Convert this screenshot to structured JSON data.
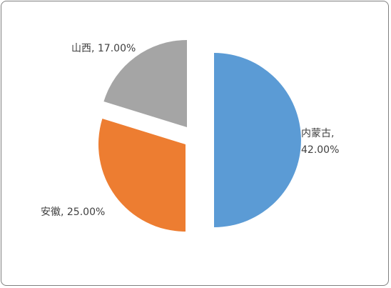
{
  "chart_data": {
    "type": "pie",
    "exploded": true,
    "series": [
      {
        "name": "",
        "slices": [
          {
            "label": "内蒙古",
            "value": 42.0,
            "display": [
              "内蒙古,",
              "42.00%"
            ],
            "color": "#5B9BD5"
          },
          {
            "label": "安徽",
            "value": 25.0,
            "display": [
              "安徽, 25.00%"
            ],
            "color": "#ED7D31"
          },
          {
            "label": "山西",
            "value": 17.0,
            "display": [
              "山西, 17.00%"
            ],
            "color": "#A5A5A5"
          }
        ]
      }
    ],
    "legend": "none",
    "title": ""
  }
}
